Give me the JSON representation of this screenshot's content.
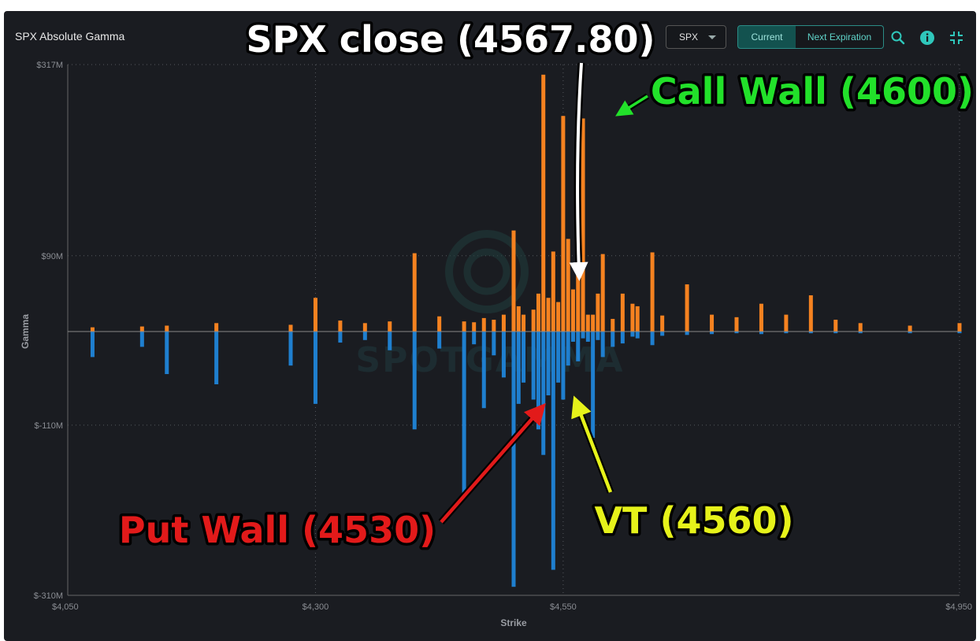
{
  "header": {
    "title": "SPX Absolute Gamma",
    "symbol": "SPX",
    "current_label": "Current",
    "next_label": "Next Expiration"
  },
  "icons": {
    "zoom": "zoom-icon",
    "info": "info-icon",
    "collapse": "collapse-icon"
  },
  "colors": {
    "call": "#f58220",
    "put": "#1f7fcf",
    "accent": "#2b8c86"
  },
  "watermark": "SPOTGAMMA",
  "chart_data": {
    "type": "bar",
    "xlabel": "Strike",
    "ylabel": "Gamma",
    "xlim": [
      4050,
      4950
    ],
    "ylim": [
      -310,
      317
    ],
    "x_ticks": [
      4050,
      4300,
      4550,
      4950
    ],
    "x_tick_labels": [
      "$4,050",
      "$4,300",
      "$4,550",
      "$4,950"
    ],
    "y_ticks": [
      317,
      90,
      -110,
      -310
    ],
    "y_tick_labels": [
      "$317M",
      "$90M",
      "$-110M",
      "$-310M"
    ],
    "grid": true,
    "series": [
      {
        "name": "Calls",
        "color": "#f58220",
        "x": [
          4075,
          4125,
          4150,
          4200,
          4275,
          4300,
          4325,
          4350,
          4375,
          4400,
          4425,
          4450,
          4460,
          4470,
          4480,
          4490,
          4500,
          4505,
          4510,
          4520,
          4525,
          4530,
          4535,
          4540,
          4545,
          4550,
          4555,
          4560,
          4565,
          4570,
          4575,
          4580,
          4585,
          4590,
          4600,
          4610,
          4620,
          4625,
          4640,
          4650,
          4675,
          4700,
          4725,
          4750,
          4775,
          4800,
          4825,
          4850,
          4900,
          4950
        ],
        "values": [
          5,
          6,
          7,
          10,
          8,
          40,
          13,
          10,
          12,
          93,
          18,
          12,
          11,
          16,
          14,
          20,
          120,
          30,
          20,
          26,
          45,
          305,
          40,
          95,
          35,
          256,
          110,
          50,
          70,
          253,
          20,
          20,
          45,
          92,
          15,
          45,
          33,
          30,
          94,
          19,
          56,
          20,
          17,
          33,
          20,
          43,
          14,
          10,
          7,
          10
        ]
      },
      {
        "name": "Puts",
        "color": "#1f7fcf",
        "x": [
          4075,
          4125,
          4150,
          4200,
          4275,
          4300,
          4325,
          4350,
          4375,
          4400,
          4425,
          4450,
          4460,
          4470,
          4480,
          4490,
          4500,
          4505,
          4510,
          4520,
          4525,
          4530,
          4535,
          4540,
          4545,
          4550,
          4555,
          4560,
          4565,
          4570,
          4575,
          4580,
          4585,
          4590,
          4600,
          4610,
          4620,
          4625,
          4640,
          4650,
          4675,
          4700,
          4725,
          4750,
          4775,
          4800,
          4825,
          4850,
          4900,
          4950
        ],
        "values": [
          -30,
          -18,
          -50,
          -62,
          -40,
          -85,
          -13,
          -10,
          -22,
          -115,
          -20,
          -190,
          -15,
          -90,
          -28,
          -54,
          -300,
          -85,
          -60,
          -80,
          -115,
          -145,
          -75,
          -280,
          -60,
          -80,
          -40,
          -12,
          -35,
          -8,
          -12,
          -125,
          -10,
          -30,
          -18,
          -14,
          -6,
          -8,
          -16,
          -5,
          -4,
          -3,
          -2,
          -3,
          -2,
          -2,
          -2,
          -2,
          -2,
          -2
        ]
      }
    ],
    "annotations": [
      {
        "text": "SPX close (4567.80)",
        "color": "#ffffff",
        "x": 4567.8,
        "y": 60
      },
      {
        "text": "Call Wall (4600)",
        "color": "#22e12a",
        "x": 4600,
        "y": 253
      },
      {
        "text": "Put Wall (4530)",
        "color": "#e21a1a",
        "x": 4530,
        "y": -85
      },
      {
        "text": "VT (4560)",
        "color": "#e6f21a",
        "x": 4560,
        "y": -85
      }
    ]
  }
}
